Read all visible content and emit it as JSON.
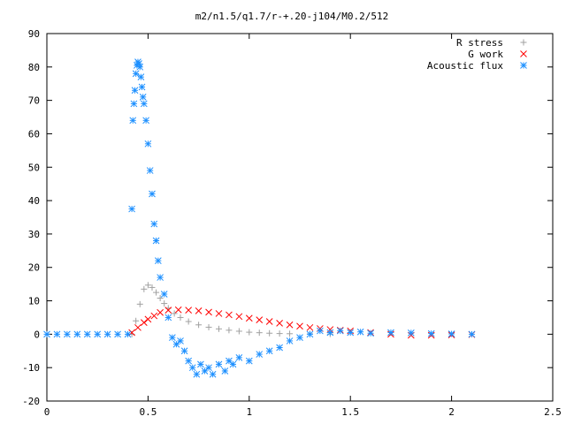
{
  "chart_data": {
    "type": "scatter",
    "title": "m2/n1.5/q1.7/r-+.20-j104/M0.2/512",
    "xlabel": "",
    "ylabel": "",
    "xlim": [
      0,
      2.5
    ],
    "ylim": [
      -20,
      90
    ],
    "grid": false,
    "legend_position": "top-right",
    "xticks": [
      {
        "value": 0,
        "label": "0"
      },
      {
        "value": 0.5,
        "label": "0.5"
      },
      {
        "value": 1,
        "label": "1"
      },
      {
        "value": 1.5,
        "label": "1.5"
      },
      {
        "value": 2,
        "label": "2"
      },
      {
        "value": 2.5,
        "label": "2.5"
      }
    ],
    "yticks": [
      {
        "value": -20,
        "label": "-20"
      },
      {
        "value": -10,
        "label": "-10"
      },
      {
        "value": 0,
        "label": "0"
      },
      {
        "value": 10,
        "label": "10"
      },
      {
        "value": 20,
        "label": "20"
      },
      {
        "value": 30,
        "label": "30"
      },
      {
        "value": 40,
        "label": "40"
      },
      {
        "value": 50,
        "label": "50"
      },
      {
        "value": 60,
        "label": "60"
      },
      {
        "value": 70,
        "label": "70"
      },
      {
        "value": 80,
        "label": "80"
      },
      {
        "value": 90,
        "label": "90"
      }
    ],
    "series": [
      {
        "name": "R stress",
        "marker": "plus",
        "color": "#a0a0a0",
        "x": [
          0.42,
          0.44,
          0.46,
          0.48,
          0.5,
          0.52,
          0.54,
          0.56,
          0.58,
          0.6,
          0.63,
          0.66,
          0.7,
          0.75,
          0.8,
          0.85,
          0.9,
          0.95,
          1.0,
          1.05,
          1.1,
          1.15,
          1.2,
          1.3,
          1.4
        ],
        "y": [
          0,
          4,
          9,
          13.5,
          14.7,
          14,
          12.5,
          10.8,
          9.2,
          7.8,
          6.2,
          5,
          3.8,
          2.8,
          2.1,
          1.6,
          1.2,
          0.9,
          0.6,
          0.45,
          0.3,
          0.2,
          0.15,
          0.1,
          0.05
        ]
      },
      {
        "name": "G work",
        "marker": "cross",
        "color": "#ff0000",
        "x": [
          0.42,
          0.45,
          0.48,
          0.5,
          0.53,
          0.56,
          0.6,
          0.65,
          0.7,
          0.75,
          0.8,
          0.85,
          0.9,
          0.95,
          1.0,
          1.05,
          1.1,
          1.15,
          1.2,
          1.25,
          1.3,
          1.35,
          1.4,
          1.45,
          1.5,
          1.6,
          1.7,
          1.8,
          1.9,
          2.0,
          2.1
        ],
        "y": [
          0.5,
          2,
          3.5,
          4.5,
          5.5,
          6.5,
          7.2,
          7.3,
          7.2,
          7,
          6.6,
          6.2,
          5.8,
          5.3,
          4.8,
          4.3,
          3.8,
          3.3,
          2.8,
          2.4,
          2,
          1.7,
          1.4,
          1.2,
          1,
          0.5,
          0,
          -0.3,
          -0.3,
          -0.2,
          -0.1
        ]
      },
      {
        "name": "Acoustic flux",
        "marker": "star",
        "color": "#1e90ff",
        "x": [
          0.0,
          0.05,
          0.1,
          0.15,
          0.2,
          0.25,
          0.3,
          0.35,
          0.4,
          0.42,
          0.425,
          0.43,
          0.435,
          0.44,
          0.445,
          0.45,
          0.455,
          0.46,
          0.465,
          0.47,
          0.475,
          0.48,
          0.49,
          0.5,
          0.51,
          0.52,
          0.53,
          0.54,
          0.55,
          0.56,
          0.58,
          0.6,
          0.62,
          0.64,
          0.66,
          0.68,
          0.7,
          0.72,
          0.74,
          0.76,
          0.78,
          0.8,
          0.82,
          0.85,
          0.88,
          0.9,
          0.92,
          0.95,
          1.0,
          1.05,
          1.1,
          1.15,
          1.2,
          1.25,
          1.3,
          1.35,
          1.4,
          1.45,
          1.5,
          1.55,
          1.6,
          1.7,
          1.8,
          1.9,
          2.0,
          2.1
        ],
        "y": [
          0,
          0,
          0,
          0,
          0,
          0,
          0,
          0,
          0,
          37.5,
          64,
          69,
          73,
          78,
          80.5,
          81.5,
          81,
          80,
          77,
          74,
          71,
          69,
          64,
          57,
          49,
          42,
          33,
          28,
          22,
          17,
          12,
          5,
          -1,
          -3,
          -2,
          -5,
          -8,
          -10,
          -12,
          -9,
          -11,
          -10,
          -12,
          -9,
          -11,
          -8,
          -9,
          -7,
          -8,
          -6,
          -5,
          -4,
          -2,
          -1,
          0,
          1,
          0.5,
          1,
          0.5,
          0.7,
          0.3,
          0.5,
          0.4,
          0.2,
          0.1,
          0
        ]
      }
    ]
  }
}
